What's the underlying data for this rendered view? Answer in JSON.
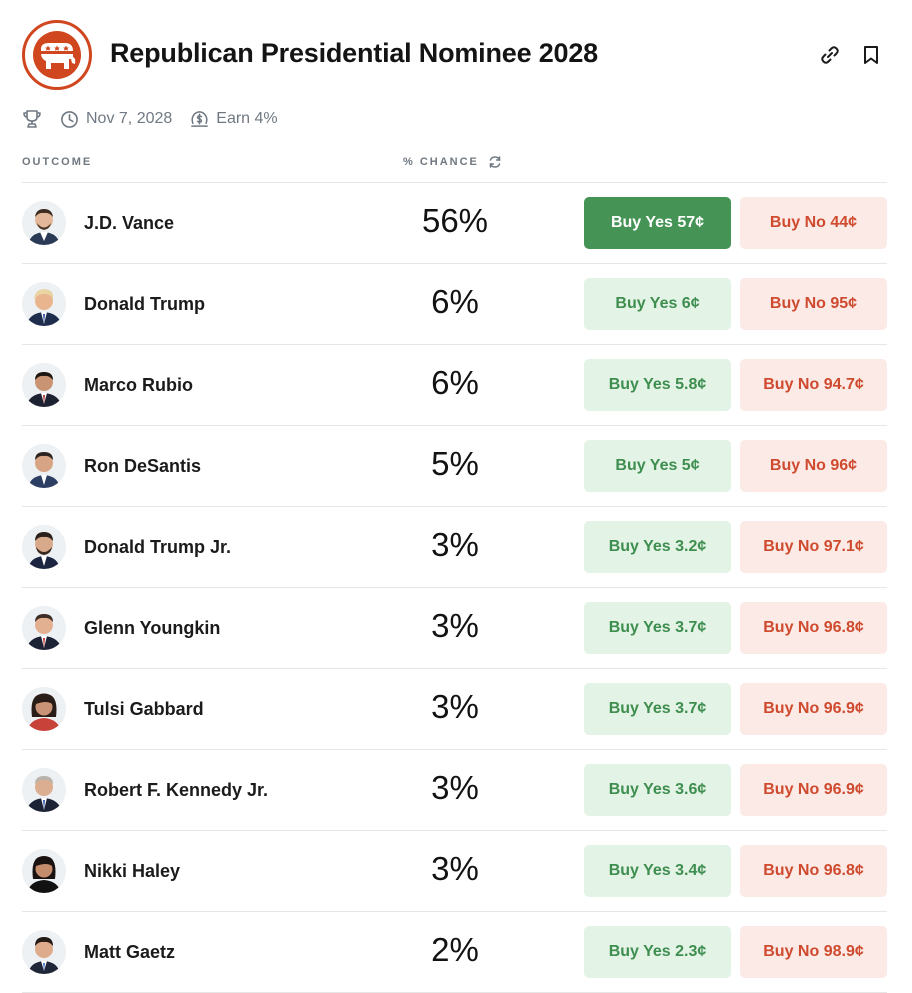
{
  "market": {
    "title": "Republican Presidential Nominee 2028",
    "date": "Nov 7, 2028",
    "earn": "Earn 4%"
  },
  "columns": {
    "outcome": "OUTCOME",
    "chance": "% CHANCE"
  },
  "colors": {
    "brand_red": "#d0461e",
    "yes_green": "#459455",
    "yes_bg": "#e3f3e6",
    "no_red": "#cf4a2e",
    "no_bg": "#fbeae6"
  },
  "icons": [
    "gop-elephant-logo",
    "link-icon",
    "bookmark-icon",
    "trophy-icon",
    "clock-icon",
    "earn-icon",
    "refresh-icon"
  ],
  "outcomes": [
    {
      "name": "J.D. Vance",
      "chance": "56%",
      "yes": "Buy Yes 57¢",
      "no": "Buy No 44¢"
    },
    {
      "name": "Donald Trump",
      "chance": "6%",
      "yes": "Buy Yes 6¢",
      "no": "Buy No 95¢"
    },
    {
      "name": "Marco Rubio",
      "chance": "6%",
      "yes": "Buy Yes 5.8¢",
      "no": "Buy No 94.7¢"
    },
    {
      "name": "Ron DeSantis",
      "chance": "5%",
      "yes": "Buy Yes 5¢",
      "no": "Buy No 96¢"
    },
    {
      "name": "Donald Trump Jr.",
      "chance": "3%",
      "yes": "Buy Yes 3.2¢",
      "no": "Buy No 97.1¢"
    },
    {
      "name": "Glenn Youngkin",
      "chance": "3%",
      "yes": "Buy Yes 3.7¢",
      "no": "Buy No 96.8¢"
    },
    {
      "name": "Tulsi Gabbard",
      "chance": "3%",
      "yes": "Buy Yes 3.7¢",
      "no": "Buy No 96.9¢"
    },
    {
      "name": "Robert F. Kennedy Jr.",
      "chance": "3%",
      "yes": "Buy Yes 3.6¢",
      "no": "Buy No 96.9¢"
    },
    {
      "name": "Nikki Haley",
      "chance": "3%",
      "yes": "Buy Yes 3.4¢",
      "no": "Buy No 96.8¢"
    },
    {
      "name": "Matt Gaetz",
      "chance": "2%",
      "yes": "Buy Yes 2.3¢",
      "no": "Buy No 98.9¢"
    }
  ]
}
